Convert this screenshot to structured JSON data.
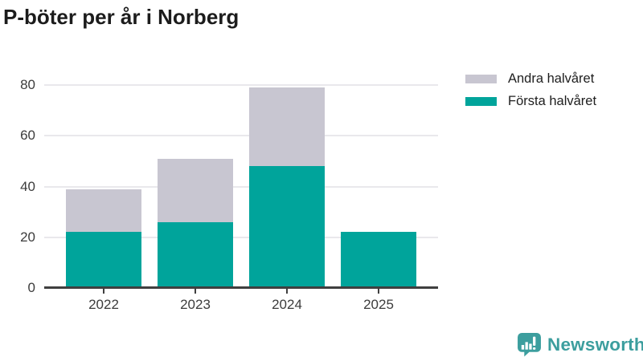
{
  "title": "P-böter per år i Norberg",
  "legend": {
    "items": [
      {
        "label": "Andra halvåret",
        "color": "#c8c6d1"
      },
      {
        "label": "Första halvåret",
        "color": "#00a49b"
      }
    ]
  },
  "chart_data": {
    "type": "bar",
    "stacked": true,
    "title": "P-böter per år i Norberg",
    "categories": [
      "2022",
      "2023",
      "2024",
      "2025"
    ],
    "series": [
      {
        "name": "Första halvåret",
        "color": "#00a49b",
        "values": [
          22,
          26,
          48,
          22
        ]
      },
      {
        "name": "Andra halvåret",
        "color": "#c8c6d1",
        "values": [
          17,
          25,
          31,
          0
        ]
      }
    ],
    "totals": [
      39,
      51,
      79,
      22
    ],
    "xlabel": "",
    "ylabel": "",
    "yticks": [
      0,
      20,
      40,
      60,
      80
    ],
    "ylim": [
      0,
      85
    ],
    "grid": "horizontal",
    "gridline_color": "#e9e8ec",
    "axis_color": "#3f3f3f",
    "tick_label_color": "#3c3c3c",
    "legend_position": "top-right"
  },
  "branding": {
    "logo_text": "Newsworthy",
    "logo_icon": "bar-chart-speech-bubble-icon",
    "logo_color": "#3c9e9e"
  }
}
